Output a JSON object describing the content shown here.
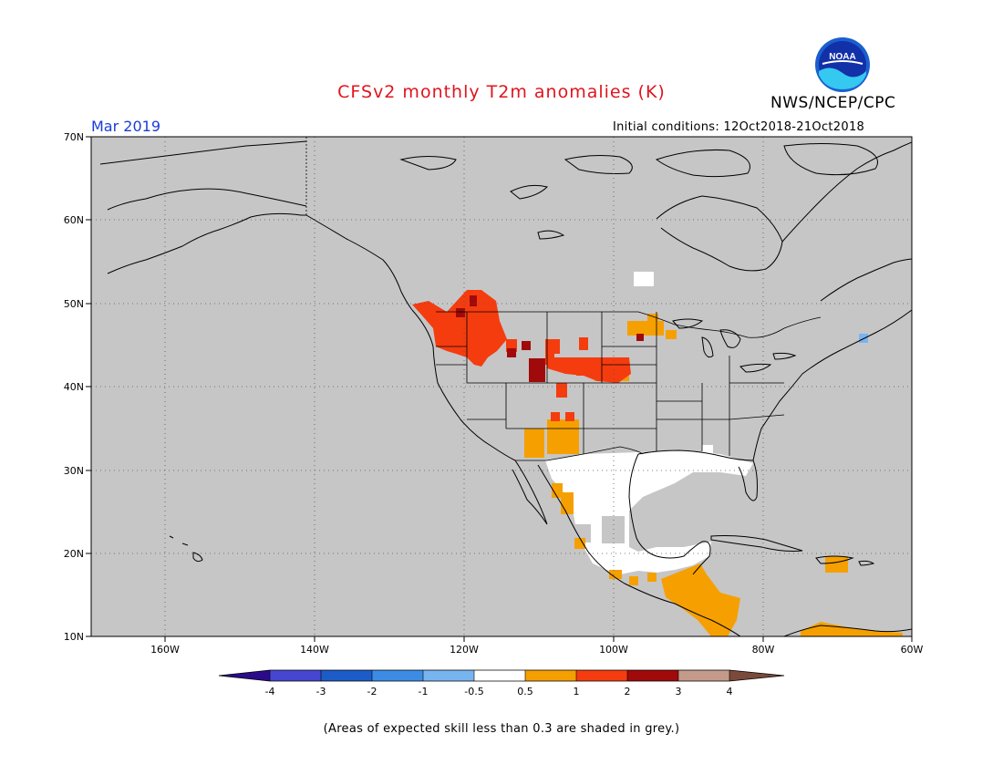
{
  "title": "CFSv2 monthly T2m anomalies (K)",
  "agency": "NWS/NCEP/CPC",
  "logo_text": "NOAA",
  "month": "Mar 2019",
  "initial_conditions": "Initial conditions: 12Oct2018-21Oct2018",
  "footnote": "(Areas of expected skill less than 0.3 are shaded in grey.)",
  "map": {
    "lat_labels": [
      "70N",
      "60N",
      "50N",
      "40N",
      "30N",
      "20N",
      "10N"
    ],
    "lon_labels": [
      "160W",
      "140W",
      "120W",
      "100W",
      "80W",
      "60W"
    ],
    "background_color": "#c6c6c6"
  },
  "colorbar": {
    "labels": [
      "-4",
      "-3",
      "-2",
      "-1",
      "-0.5",
      "0.5",
      "1",
      "2",
      "3",
      "4"
    ],
    "colors": [
      "#2b0b8a",
      "#4646d0",
      "#1c5cc8",
      "#3c8ce6",
      "#78b4f0",
      "#ffffff",
      "#f5a000",
      "#f53c0f",
      "#a00a0a",
      "#c49a8a",
      "#7a4a3a"
    ]
  }
}
